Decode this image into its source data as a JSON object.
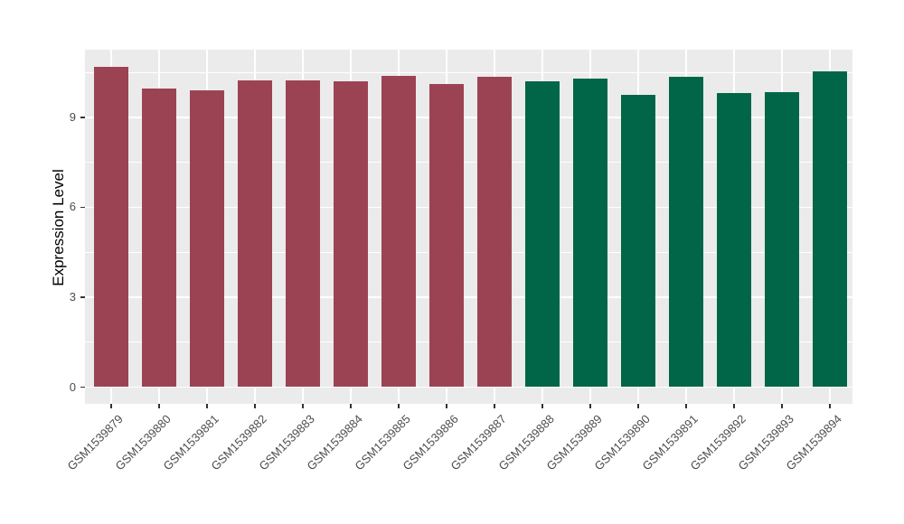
{
  "chart_data": {
    "type": "bar",
    "title": "",
    "xlabel": "",
    "ylabel": "Expression Level",
    "categories": [
      "GSM1539879",
      "GSM1539880",
      "GSM1539881",
      "GSM1539882",
      "GSM1539883",
      "GSM1539884",
      "GSM1539885",
      "GSM1539886",
      "GSM1539887",
      "GSM1539888",
      "GSM1539889",
      "GSM1539890",
      "GSM1539891",
      "GSM1539892",
      "GSM1539893",
      "GSM1539894"
    ],
    "values": [
      10.7,
      9.95,
      9.9,
      10.25,
      10.25,
      10.2,
      10.4,
      10.1,
      10.35,
      10.2,
      10.3,
      9.75,
      10.35,
      9.8,
      9.85,
      10.55
    ],
    "bar_groups": [
      0,
      0,
      0,
      0,
      0,
      0,
      0,
      0,
      0,
      1,
      1,
      1,
      1,
      1,
      1,
      1
    ],
    "group_colors": [
      "#9C4353",
      "#006647"
    ],
    "yticks": [
      0,
      3,
      6,
      9
    ],
    "yticks_minor": [
      1.5,
      4.5,
      7.5,
      10.5
    ],
    "ylim": [
      0,
      11.8
    ],
    "legend": false,
    "grid": true,
    "panel_background": "#EBEBEB",
    "gridline_color": "#FFFFFF",
    "tick_color": "#333333",
    "tick_label_color": "#4D4D4D",
    "axis_title_color": "#000000",
    "figure_background": "#FFFFFF"
  }
}
